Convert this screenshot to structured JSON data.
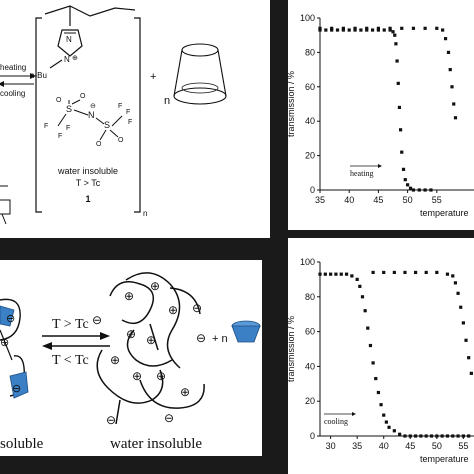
{
  "scheme": {
    "arrow_top_label": "heating",
    "arrow_bottom_label": "cooling",
    "substituent": "n-Bu",
    "charge_plus": "⊕",
    "charge_minus": "⊖",
    "plus_sign": "+",
    "n_label": "n",
    "subscript_n": "n",
    "caption_line1": "water insoluble",
    "caption_line2": "T > Tc",
    "compound_number": "1"
  },
  "assembly": {
    "arrow_top_label": "T > Tc",
    "arrow_bottom_label": "T < Tc",
    "left_caption": "soluble",
    "right_caption": "water insoluble",
    "plus_n": "+ n",
    "plus_symbol": "⊕",
    "minus_symbol": "⊖"
  },
  "chart_data": [
    {
      "type": "scatter",
      "ylabel": "transmission / %",
      "xlabel": "temperature",
      "annotation": "heating",
      "xlim": [
        35,
        60
      ],
      "ylim": [
        0,
        100
      ],
      "xticks": [
        "35",
        "40",
        "45",
        "50",
        "55"
      ],
      "yticks": [
        "0",
        "20",
        "40",
        "60",
        "80",
        "100"
      ],
      "series": [
        {
          "values": [
            [
              35,
              93
            ],
            [
              36,
              93
            ],
            [
              37,
              93
            ],
            [
              38,
              93
            ],
            [
              39,
              93
            ],
            [
              40,
              93
            ],
            [
              41,
              93
            ],
            [
              42,
              93
            ],
            [
              43,
              93
            ],
            [
              44,
              93
            ],
            [
              45,
              93
            ],
            [
              46,
              93
            ],
            [
              47,
              93
            ],
            [
              47.5,
              92
            ],
            [
              47.8,
              90
            ],
            [
              48,
              85
            ],
            [
              48.2,
              75
            ],
            [
              48.4,
              62
            ],
            [
              48.6,
              48
            ],
            [
              48.8,
              35
            ],
            [
              49,
              22
            ],
            [
              49.3,
              12
            ],
            [
              49.6,
              6
            ],
            [
              50,
              3
            ],
            [
              50.5,
              1
            ],
            [
              51,
              0
            ],
            [
              52,
              0
            ],
            [
              53,
              0
            ],
            [
              54,
              0
            ]
          ]
        },
        {
          "values": [
            [
              35,
              94
            ],
            [
              37,
              94
            ],
            [
              39,
              94
            ],
            [
              41,
              94
            ],
            [
              43,
              94
            ],
            [
              45,
              94
            ],
            [
              47,
              94
            ],
            [
              49,
              94
            ],
            [
              51,
              94
            ],
            [
              53,
              94
            ],
            [
              55,
              94
            ],
            [
              56,
              93
            ],
            [
              56.5,
              88
            ],
            [
              57,
              80
            ],
            [
              57.3,
              70
            ],
            [
              57.6,
              60
            ],
            [
              57.9,
              50
            ],
            [
              58.2,
              42
            ]
          ]
        }
      ]
    },
    {
      "type": "scatter",
      "ylabel": "transmission / %",
      "xlabel": "temperature",
      "annotation": "cooling",
      "xlim": [
        28,
        57
      ],
      "ylim": [
        0,
        100
      ],
      "xticks": [
        "30",
        "35",
        "40",
        "45",
        "50",
        "55"
      ],
      "yticks": [
        "0",
        "20",
        "40",
        "60",
        "80",
        "100"
      ],
      "series": [
        {
          "values": [
            [
              28,
              93
            ],
            [
              29,
              93
            ],
            [
              30,
              93
            ],
            [
              31,
              93
            ],
            [
              32,
              93
            ],
            [
              33,
              93
            ],
            [
              34,
              92
            ],
            [
              35,
              90
            ],
            [
              35.5,
              86
            ],
            [
              36,
              80
            ],
            [
              36.5,
              72
            ],
            [
              37,
              62
            ],
            [
              37.5,
              52
            ],
            [
              38,
              42
            ],
            [
              38.5,
              33
            ],
            [
              39,
              25
            ],
            [
              39.5,
              18
            ],
            [
              40,
              12
            ],
            [
              40.5,
              8
            ],
            [
              41,
              5
            ],
            [
              42,
              3
            ],
            [
              43,
              1
            ],
            [
              44,
              0
            ],
            [
              45,
              0
            ],
            [
              46,
              0
            ],
            [
              47,
              0
            ],
            [
              48,
              0
            ],
            [
              49,
              0
            ],
            [
              50,
              0
            ],
            [
              51,
              0
            ],
            [
              52,
              0
            ],
            [
              53,
              0
            ],
            [
              54,
              0
            ],
            [
              55,
              0
            ],
            [
              56,
              0
            ]
          ]
        },
        {
          "values": [
            [
              38,
              94
            ],
            [
              40,
              94
            ],
            [
              42,
              94
            ],
            [
              44,
              94
            ],
            [
              46,
              94
            ],
            [
              48,
              94
            ],
            [
              50,
              94
            ],
            [
              52,
              93
            ],
            [
              53,
              92
            ],
            [
              53.5,
              88
            ],
            [
              54,
              82
            ],
            [
              54.5,
              74
            ],
            [
              55,
              65
            ],
            [
              55.5,
              55
            ],
            [
              56,
              45
            ],
            [
              56.5,
              36
            ]
          ]
        }
      ]
    }
  ]
}
